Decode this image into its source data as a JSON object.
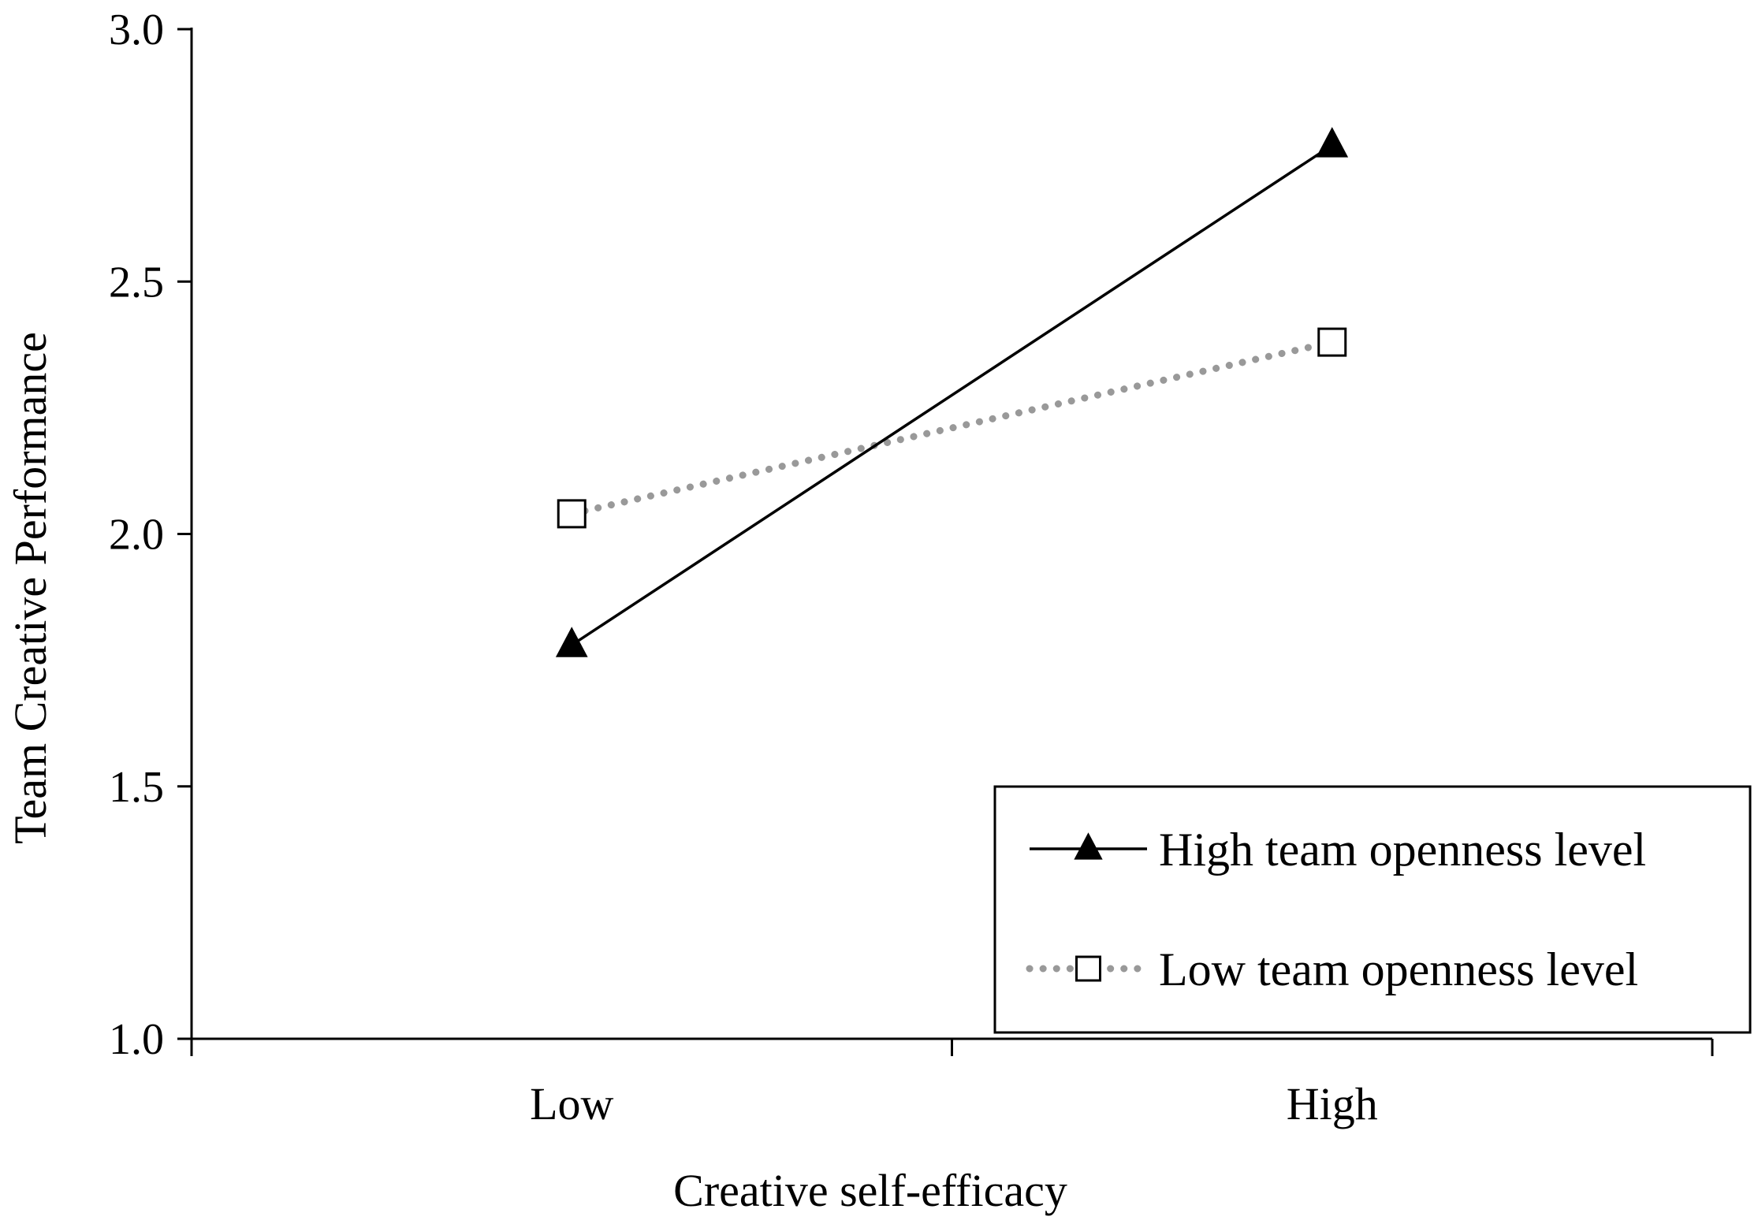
{
  "chart_data": {
    "type": "line",
    "title": "",
    "xlabel": "Creative self-efficacy",
    "ylabel": "Team Creative Performance",
    "categories": [
      "Low",
      "High"
    ],
    "ylim": [
      1.0,
      3.0
    ],
    "yticks": [
      "1.0",
      "1.5",
      "2.0",
      "2.5",
      "3.0"
    ],
    "grid": false,
    "legend_position": "bottom-right",
    "series": [
      {
        "name": "High team openness level",
        "values": [
          1.78,
          2.77
        ],
        "color": "#000000",
        "line_style": "solid",
        "marker": "filled-triangle"
      },
      {
        "name": "Low team openness level",
        "values": [
          2.04,
          2.38
        ],
        "color": "#999999",
        "line_style": "dotted",
        "marker": "hollow-square"
      }
    ]
  }
}
